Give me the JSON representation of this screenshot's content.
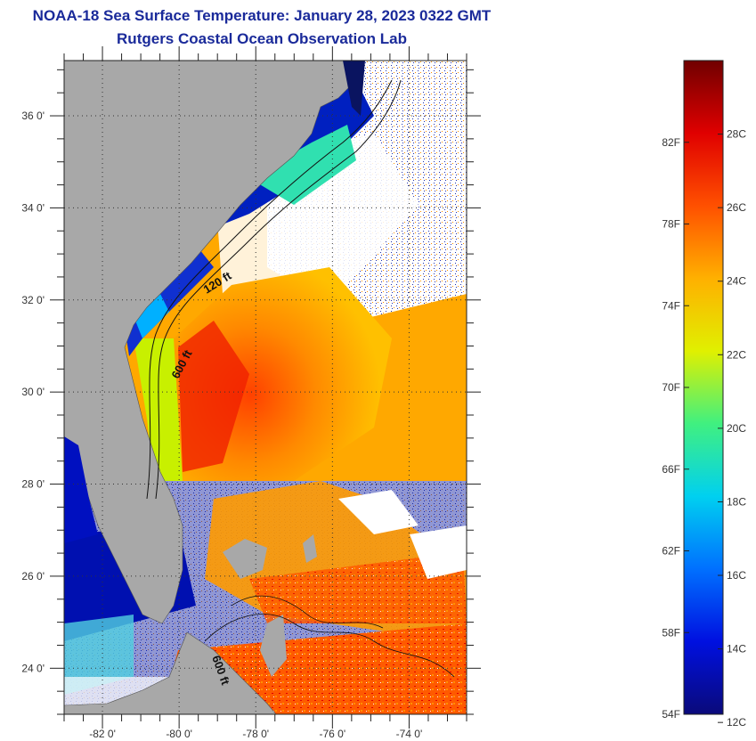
{
  "title": "NOAA-18 Sea Surface Temperature:  January 28, 2023 0322 GMT",
  "subtitle": "Rutgers Coastal Ocean Observation Lab",
  "map": {
    "lon_range": [
      -83.0,
      -72.5
    ],
    "lat_range": [
      23.0,
      37.2
    ],
    "lon_ticks": [
      {
        "value": -82,
        "label": "-82 0'"
      },
      {
        "value": -80,
        "label": "-80 0'"
      },
      {
        "value": -78,
        "label": "-78 0'"
      },
      {
        "value": -76,
        "label": "-76 0'"
      },
      {
        "value": -74,
        "label": "-74 0'"
      }
    ],
    "lat_ticks": [
      {
        "value": 36,
        "label": "36 0'"
      },
      {
        "value": 34,
        "label": "34 0'"
      },
      {
        "value": 32,
        "label": "32 0'"
      },
      {
        "value": 30,
        "label": "30 0'"
      },
      {
        "value": 28,
        "label": "28 0'"
      },
      {
        "value": 26,
        "label": "26 0'"
      },
      {
        "value": 24,
        "label": "24 0'"
      }
    ],
    "contour_labels": [
      {
        "text": "120 ft"
      },
      {
        "text": "600 ft"
      },
      {
        "text": "600 ft"
      }
    ],
    "land_color": "#a8a8a8",
    "cloud_color": "#ffffff",
    "grid": true
  },
  "colorbar": {
    "min_f": 54,
    "max_f": 86,
    "f_labels": [
      {
        "value": 54,
        "label": "54F"
      },
      {
        "value": 58,
        "label": "58F"
      },
      {
        "value": 62,
        "label": "62F"
      },
      {
        "value": 66,
        "label": "66F"
      },
      {
        "value": 70,
        "label": "70F"
      },
      {
        "value": 74,
        "label": "74F"
      },
      {
        "value": 78,
        "label": "78F"
      },
      {
        "value": 82,
        "label": "82F"
      }
    ],
    "c_labels": [
      {
        "value": 12,
        "label": "12C"
      },
      {
        "value": 14,
        "label": "14C"
      },
      {
        "value": 16,
        "label": "16C"
      },
      {
        "value": 18,
        "label": "18C"
      },
      {
        "value": 20,
        "label": "20C"
      },
      {
        "value": 22,
        "label": "22C"
      },
      {
        "value": 24,
        "label": "24C"
      },
      {
        "value": 26,
        "label": "26C"
      },
      {
        "value": 28,
        "label": "28C"
      }
    ],
    "colors": [
      "#0a0a7a",
      "#0010e0",
      "#0070ff",
      "#00d0f0",
      "#40f080",
      "#e0f000",
      "#ffb000",
      "#ff5000",
      "#e00000",
      "#700000"
    ]
  }
}
